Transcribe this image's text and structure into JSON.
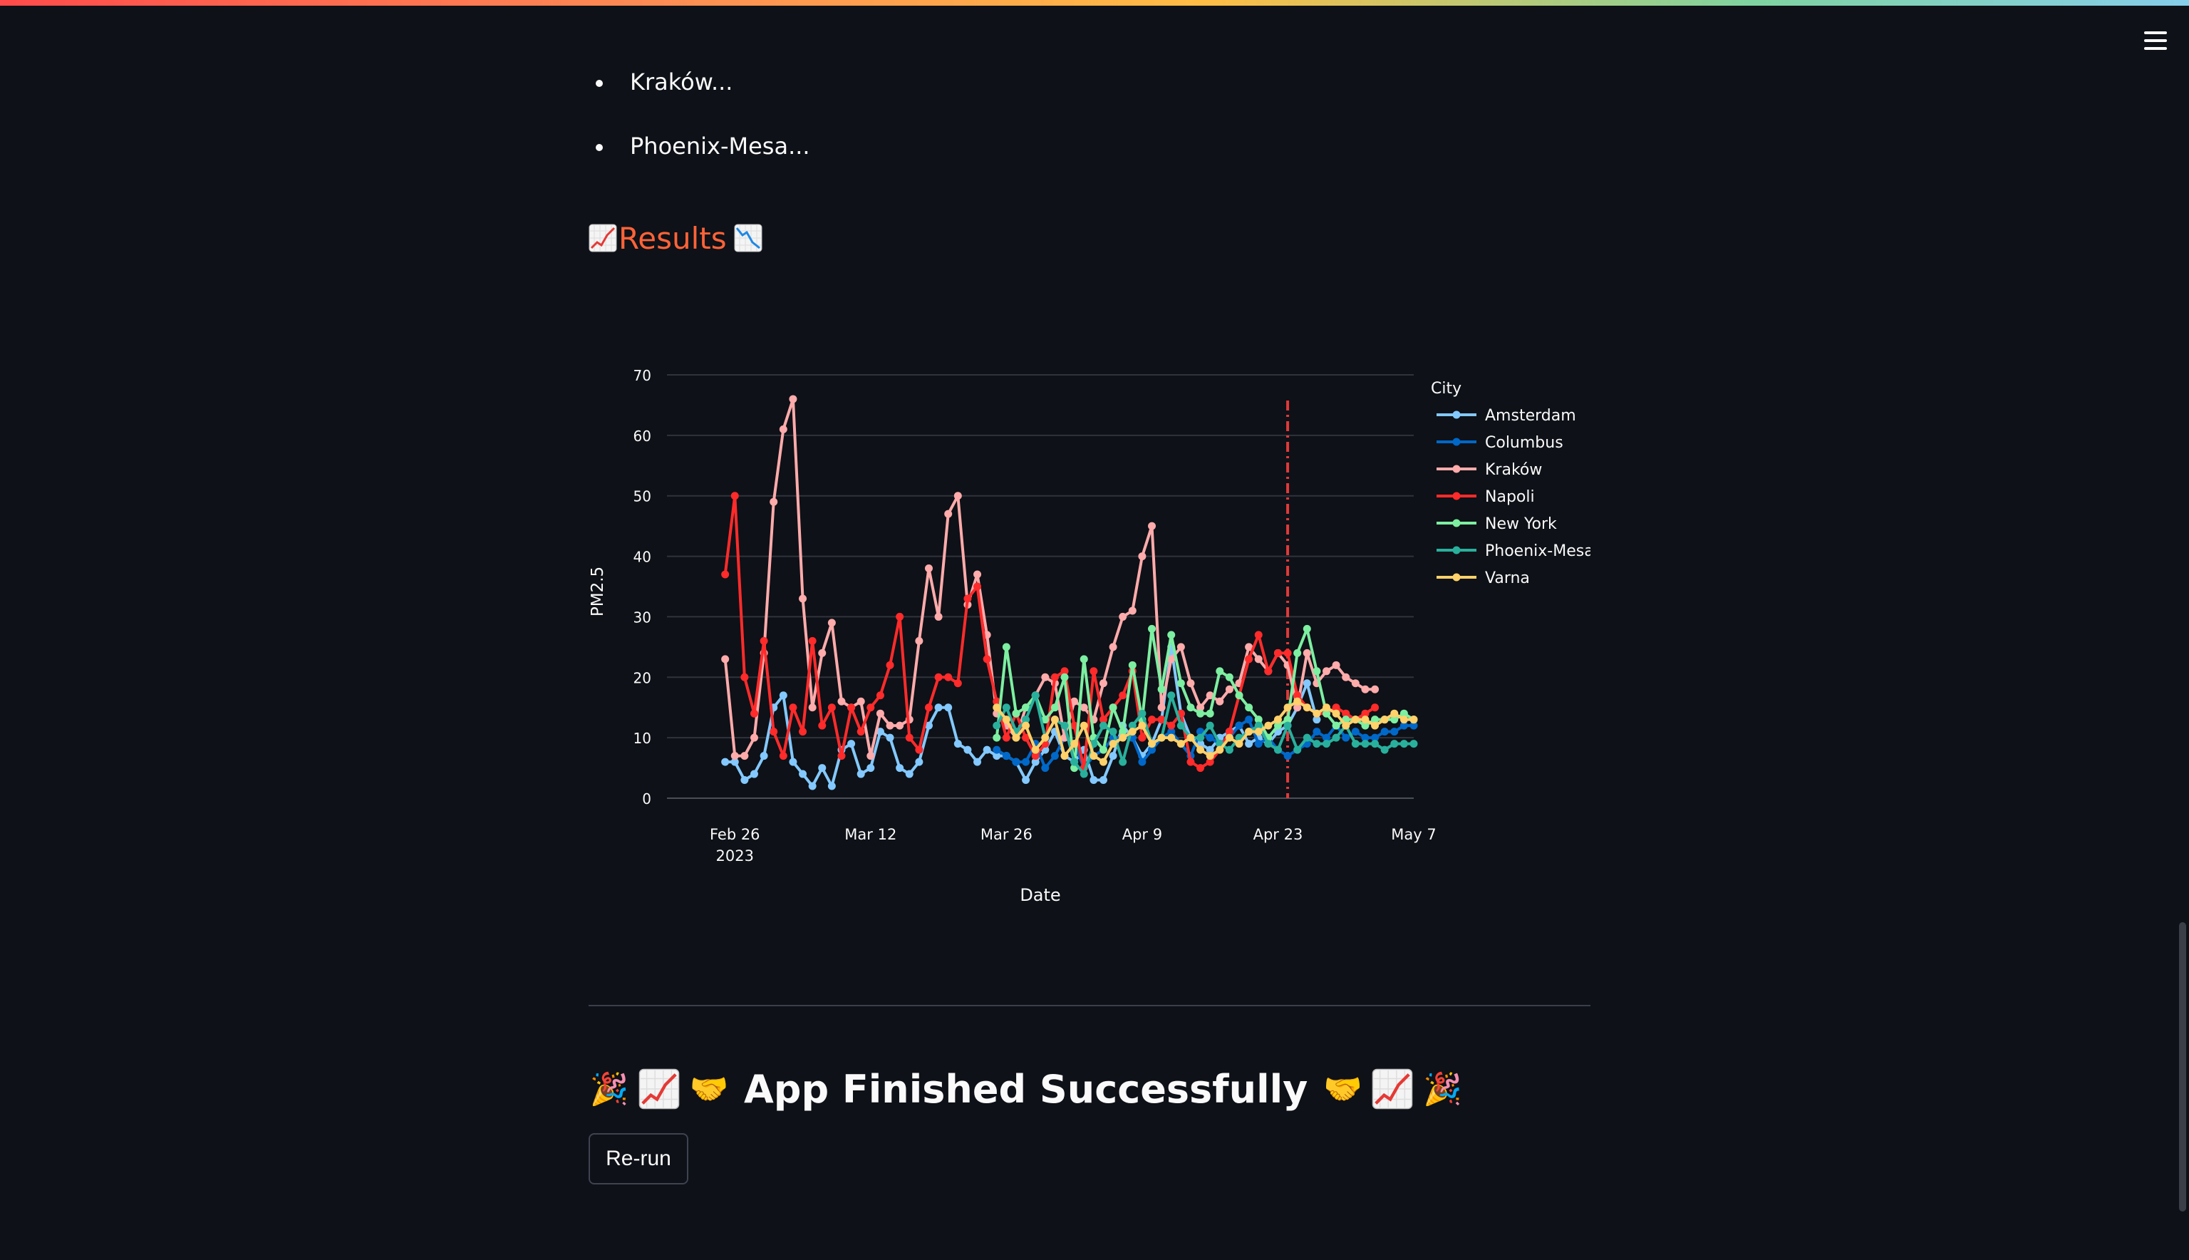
{
  "bullets": [
    "Kraków...",
    "Phoenix-Mesa..."
  ],
  "results_heading": {
    "label": "Results"
  },
  "chart_data": {
    "type": "line",
    "xlabel": "Date",
    "ylabel": "PM2.5",
    "legend_title": "City",
    "legend_position": "right",
    "grid": true,
    "x_range": [
      "2023-02-19",
      "2023-05-07"
    ],
    "ylim": [
      0,
      70
    ],
    "x_ticks": [
      {
        "date": "2023-02-26",
        "label": "Feb 26",
        "sub": "2023"
      },
      {
        "date": "2023-03-12",
        "label": "Mar 12"
      },
      {
        "date": "2023-03-26",
        "label": "Mar 26"
      },
      {
        "date": "2023-04-09",
        "label": "Apr 9"
      },
      {
        "date": "2023-04-23",
        "label": "Apr 23"
      },
      {
        "date": "2023-05-07",
        "label": "May 7"
      }
    ],
    "y_ticks": [
      0,
      10,
      20,
      30,
      40,
      50,
      60,
      70
    ],
    "vline": {
      "date": "2023-04-24",
      "color": "#e03a3a",
      "style": "dash-dot"
    },
    "series": [
      {
        "name": "Amsterdam",
        "color": "#83c9ff",
        "start": "2023-02-25",
        "values": [
          6,
          6,
          3,
          4,
          7,
          15,
          17,
          6,
          4,
          2,
          5,
          2,
          8,
          9,
          4,
          5,
          11,
          10,
          5,
          4,
          6,
          12,
          15,
          15,
          9,
          8,
          6,
          8,
          7,
          7,
          6,
          3,
          6,
          8,
          11,
          7,
          6,
          8,
          3,
          3,
          7,
          12,
          10,
          7,
          9,
          13,
          25,
          14,
          10,
          9,
          8,
          10,
          11,
          12,
          9,
          10,
          9,
          11,
          12,
          15,
          19,
          13
        ]
      },
      {
        "name": "Columbus",
        "color": "#0068c9",
        "start": "2023-03-25",
        "values": [
          8,
          7,
          6,
          6,
          9,
          5,
          7,
          10,
          9,
          5,
          7,
          8,
          10,
          10,
          10,
          6,
          8,
          10,
          11,
          9,
          7,
          11,
          10,
          9,
          10,
          12,
          13,
          9,
          10,
          8,
          7,
          8,
          9,
          11,
          10,
          12,
          10,
          11,
          10,
          10,
          11,
          11,
          12,
          12
        ]
      },
      {
        "name": "Kraków",
        "color": "#ffabab",
        "start": "2023-02-25",
        "values": [
          23,
          7,
          7,
          10,
          24,
          49,
          61,
          66,
          33,
          15,
          24,
          29,
          16,
          15,
          16,
          7,
          14,
          12,
          12,
          13,
          26,
          38,
          30,
          47,
          50,
          32,
          37,
          27,
          14,
          12,
          10,
          15,
          17,
          20,
          19,
          10,
          16,
          15,
          13,
          19,
          25,
          30,
          31,
          40,
          45,
          15,
          23,
          25,
          19,
          15,
          17,
          16,
          18,
          19,
          25,
          23,
          21,
          24,
          22,
          15,
          24,
          19,
          21,
          22,
          20,
          19,
          18,
          18
        ]
      },
      {
        "name": "Napoli",
        "color": "#ff2b2b",
        "start": "2023-02-25",
        "values": [
          37,
          50,
          20,
          14,
          26,
          11,
          7,
          15,
          11,
          26,
          12,
          15,
          7,
          15,
          11,
          15,
          17,
          22,
          30,
          10,
          8,
          15,
          20,
          20,
          19,
          33,
          35,
          23,
          16,
          10,
          14,
          10,
          7,
          9,
          20,
          21,
          12,
          5,
          21,
          13,
          15,
          17,
          21,
          10,
          13,
          13,
          12,
          14,
          6,
          5,
          6,
          8,
          11,
          17,
          23,
          27,
          21,
          24,
          24,
          17,
          15,
          14,
          14,
          15,
          14,
          13,
          14,
          15
        ]
      },
      {
        "name": "New York",
        "color": "#7defa1",
        "start": "2023-03-25",
        "values": [
          10,
          25,
          14,
          15,
          17,
          13,
          15,
          20,
          5,
          23,
          10,
          8,
          15,
          11,
          22,
          13,
          28,
          18,
          27,
          19,
          15,
          14,
          14,
          21,
          20,
          17,
          15,
          13,
          10,
          12,
          13,
          24,
          28,
          21,
          14,
          12,
          13,
          13,
          12,
          13,
          13,
          13,
          14,
          13
        ]
      },
      {
        "name": "Phoenix-Mesa",
        "color": "#29b09d",
        "start": "2023-03-25",
        "values": [
          12,
          15,
          11,
          13,
          17,
          10,
          13,
          12,
          6,
          4,
          9,
          12,
          11,
          6,
          12,
          14,
          9,
          10,
          17,
          12,
          10,
          10,
          12,
          9,
          8,
          10,
          11,
          12,
          9,
          8,
          12,
          8,
          10,
          9,
          9,
          10,
          12,
          9,
          9,
          9,
          8,
          9,
          9,
          9
        ]
      },
      {
        "name": "Varna",
        "color": "#ffd16a",
        "start": "2023-03-25",
        "values": [
          15,
          13,
          10,
          12,
          8,
          10,
          13,
          7,
          9,
          12,
          7,
          6,
          9,
          10,
          11,
          12,
          9,
          10,
          10,
          9,
          10,
          8,
          7,
          8,
          10,
          9,
          11,
          11,
          12,
          13,
          15,
          16,
          15,
          14,
          15,
          14,
          12,
          13,
          13,
          12,
          13,
          14,
          13,
          13
        ]
      }
    ]
  },
  "finish_heading": {
    "title": "App Finished Successfully",
    "emojis": [
      "party-popper",
      "chart-increasing",
      "handshake",
      "handshake",
      "chart-increasing",
      "party-popper"
    ]
  },
  "rerun_button": {
    "label": "Re-run"
  }
}
